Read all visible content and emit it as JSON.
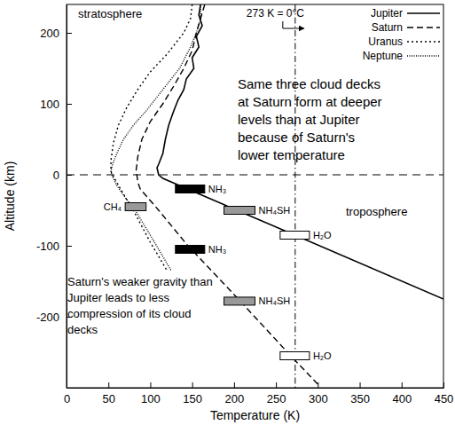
{
  "chart_data": {
    "type": "line",
    "x_label": "Temperature (K)",
    "y_label": "Altitude (km)",
    "xlim": [
      0,
      450
    ],
    "ylim": [
      -300,
      240
    ],
    "xticks": [
      0,
      50,
      100,
      150,
      200,
      250,
      300,
      350,
      400,
      450
    ],
    "yticks": [
      -200,
      -100,
      0,
      100,
      200
    ],
    "legend": "top-right",
    "series": [
      {
        "name": "Jupiter",
        "color": "#000000",
        "line_style": "solid",
        "x": [
          160,
          158,
          162,
          155,
          158,
          150,
          152,
          143,
          140,
          133,
          128,
          122,
          118,
          115,
          110,
          108,
          110,
          115,
          450
        ],
        "values": [
          240,
          225,
          210,
          195,
          180,
          165,
          150,
          135,
          120,
          105,
          90,
          70,
          50,
          30,
          15,
          10,
          0,
          -5,
          -175
        ]
      },
      {
        "name": "Saturn",
        "color": "#000000",
        "line_style": "dashed",
        "x": [
          165,
          160,
          155,
          150,
          140,
          128,
          115,
          100,
          90,
          85,
          83,
          84,
          85,
          88,
          110,
          145,
          205,
          270,
          300
        ],
        "values": [
          240,
          220,
          200,
          175,
          150,
          125,
          100,
          75,
          50,
          25,
          5,
          0,
          -10,
          -20,
          -50,
          -100,
          -175,
          -258,
          -295
        ]
      },
      {
        "name": "Uranus",
        "color": "#000000",
        "line_style": "dotted",
        "x": [
          150,
          148,
          140,
          120,
          100,
          85,
          72,
          62,
          56,
          53,
          53,
          55,
          62,
          72,
          82,
          100,
          120
        ],
        "values": [
          240,
          220,
          200,
          170,
          145,
          120,
          95,
          70,
          45,
          20,
          5,
          0,
          -15,
          -35,
          -55,
          -95,
          -135
        ]
      },
      {
        "name": "Neptune",
        "color": "#000000",
        "line_style": "densely-dotted",
        "x": [
          160,
          160,
          155,
          148,
          135,
          115,
          95,
          80,
          68,
          60,
          55,
          53,
          54,
          60,
          70,
          82,
          100,
          125
        ],
        "values": [
          240,
          220,
          200,
          180,
          150,
          120,
          90,
          70,
          50,
          30,
          15,
          5,
          0,
          -15,
          -32,
          -50,
          -85,
          -135
        ]
      }
    ],
    "clouds": [
      {
        "label": "NH₃",
        "t_range": [
          130,
          165
        ],
        "altitude": -20,
        "color": "#000000"
      },
      {
        "label": "NH₄SH",
        "t_range": [
          188,
          225
        ],
        "altitude": -50,
        "color": "#999999"
      },
      {
        "label": "H₂O",
        "t_range": [
          255,
          290
        ],
        "altitude": -85,
        "color": "#ffffff"
      },
      {
        "label": "NH₃",
        "t_range": [
          130,
          165
        ],
        "altitude": -105,
        "color": "#000000"
      },
      {
        "label": "NH₄SH",
        "t_range": [
          188,
          225
        ],
        "altitude": -178,
        "color": "#999999"
      },
      {
        "label": "H₂O",
        "t_range": [
          255,
          290
        ],
        "altitude": -255,
        "color": "#ffffff"
      },
      {
        "label": "CH₄",
        "t_range": [
          70,
          95
        ],
        "altitude": -45,
        "color": "#999999"
      }
    ],
    "reference_lines": [
      {
        "axis": "x",
        "value": 273,
        "line_style": "dashdot",
        "label": "273 K = 0°C"
      },
      {
        "axis": "y",
        "value": 0,
        "line_style": "dashed"
      }
    ],
    "annotations": [
      {
        "lines": [
          "stratosphere"
        ]
      },
      {
        "lines": [
          "troposphere"
        ]
      },
      {
        "lines": [
          "Same three cloud decks",
          "at Saturn form at deeper",
          "levels than at Jupiter",
          "because of Saturn's",
          "lower temperature"
        ]
      },
      {
        "lines": [
          "Saturn's weaker gravity than",
          "Jupiter leads to less",
          "compression of its cloud",
          "decks"
        ]
      }
    ]
  }
}
